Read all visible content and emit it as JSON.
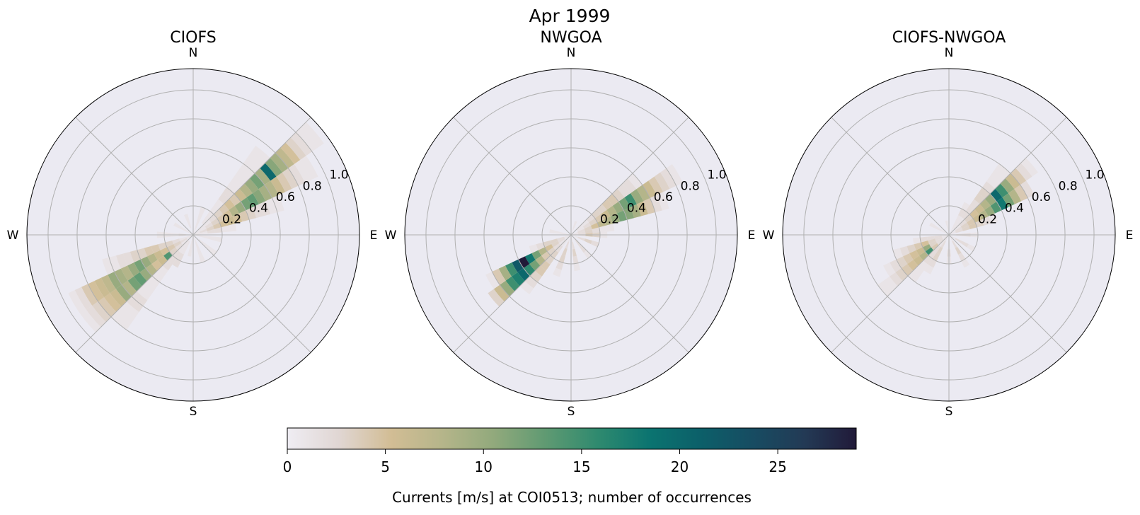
{
  "figure_title": "Apr 1999",
  "chart_data": {
    "type": "polar-histogram",
    "direction_convention": "compass degrees, clockwise from N",
    "direction_bin_width_deg": 10,
    "speed_bin_width": 0.05,
    "radial_ticks": [
      "0.2",
      "0.4",
      "0.6",
      "0.8",
      "1.0"
    ],
    "radial_tick_values": [
      0.2,
      0.4,
      0.6,
      0.8,
      1.0
    ],
    "rmax": 1.146,
    "compass_labels": {
      "N": "N",
      "E": "E",
      "S": "S",
      "W": "W"
    },
    "grid": true,
    "panels": [
      {
        "title": "CIOFS",
        "bins": {
          "40": [
            0,
            0,
            1,
            1,
            1,
            1,
            2,
            2,
            1,
            1,
            1,
            1,
            1,
            1,
            1
          ],
          "50": [
            0,
            1,
            1,
            2,
            3,
            4,
            5,
            4,
            6,
            8,
            10,
            12,
            9,
            20,
            11,
            9,
            7,
            5,
            3,
            2,
            1,
            1
          ],
          "60": [
            1,
            1,
            2,
            3,
            4,
            5,
            8,
            10,
            12,
            13,
            11,
            9,
            8,
            6,
            4,
            3,
            2,
            1,
            1
          ],
          "70": [
            1,
            2,
            3,
            4,
            5,
            6,
            5,
            4,
            3,
            2,
            2,
            1,
            1
          ],
          "80": [
            1,
            1,
            2,
            2,
            1,
            1
          ],
          "100": [
            1,
            1,
            1,
            1
          ],
          "130": [
            0,
            1,
            1,
            1
          ],
          "160": [
            1,
            1,
            1,
            1
          ],
          "190": [
            1,
            1,
            1
          ],
          "210": [
            0,
            1,
            1,
            2,
            2
          ],
          "220": [
            0,
            1,
            1,
            2,
            2,
            2,
            1,
            1,
            1,
            1,
            1,
            2,
            2,
            1,
            1,
            1
          ],
          "230": [
            0,
            1,
            2,
            3,
            14,
            6,
            5,
            8,
            10,
            13,
            12,
            8,
            10,
            6,
            5,
            4,
            3,
            2,
            1
          ],
          "240": [
            1,
            2,
            3,
            4,
            5,
            6,
            8,
            10,
            12,
            10,
            8,
            9,
            10,
            7,
            6,
            5,
            4,
            2,
            1
          ],
          "250": [
            1,
            1,
            2,
            3,
            3,
            4,
            4,
            3,
            3,
            2,
            2,
            1,
            1
          ],
          "270": [
            1,
            2,
            1,
            1,
            1
          ],
          "300": [
            1,
            1,
            1
          ],
          "340": [
            0,
            1,
            1
          ],
          "20": [
            1,
            1,
            1,
            1
          ]
        }
      },
      {
        "title": "NWGOA",
        "bins": {
          "50": [
            0,
            1,
            1,
            2,
            3,
            3,
            4,
            4,
            3,
            2,
            2,
            1
          ],
          "60": [
            0,
            1,
            2,
            3,
            4,
            6,
            8,
            10,
            12,
            15,
            10,
            8,
            6,
            4,
            3,
            2,
            1
          ],
          "70": [
            1,
            2,
            3,
            5,
            7,
            8,
            10,
            12,
            11,
            9,
            6,
            4,
            2,
            1
          ],
          "80": [
            1,
            2,
            3,
            2,
            1,
            1
          ],
          "90": [
            1,
            2,
            4,
            3,
            1
          ],
          "110": [
            1,
            2,
            3,
            2
          ],
          "140": [
            1,
            2,
            2,
            1
          ],
          "170": [
            1,
            2,
            3,
            2,
            1
          ],
          "200": [
            1,
            2,
            3,
            3,
            2,
            1
          ],
          "220": [
            1,
            1,
            2,
            3,
            3,
            4,
            4,
            3,
            2,
            1
          ],
          "230": [
            0,
            1,
            2,
            3,
            4,
            8,
            12,
            16,
            20,
            17,
            15,
            10,
            6,
            3
          ],
          "240": [
            1,
            2,
            3,
            5,
            8,
            12,
            18,
            29,
            22,
            15,
            9,
            4,
            1
          ],
          "250": [
            1,
            2,
            3,
            3,
            2,
            1
          ],
          "280": [
            1,
            1,
            1
          ],
          "20": [
            1,
            1
          ]
        }
      },
      {
        "title": "CIOFS-NWGOA",
        "bins": {
          "30": [
            1,
            1,
            1,
            2,
            1
          ],
          "40": [
            0,
            1,
            1,
            2,
            2,
            2,
            3,
            3,
            2,
            1,
            1,
            1
          ],
          "50": [
            0,
            1,
            2,
            3,
            5,
            6,
            8,
            10,
            20,
            15,
            10,
            6,
            4,
            2,
            1
          ],
          "60": [
            1,
            2,
            3,
            4,
            6,
            8,
            10,
            14,
            18,
            12,
            8,
            4,
            2
          ],
          "70": [
            1,
            2,
            3,
            4,
            3,
            2,
            1
          ],
          "90": [
            1,
            2,
            2,
            1
          ],
          "120": [
            1,
            2,
            2,
            1
          ],
          "150": [
            1,
            2,
            3,
            2,
            1
          ],
          "180": [
            1,
            1,
            2,
            1
          ],
          "210": [
            1,
            2,
            3,
            3,
            2,
            1
          ],
          "220": [
            1,
            1,
            2,
            2,
            2,
            1,
            1,
            1
          ],
          "230": [
            1,
            2,
            4,
            15,
            8,
            6,
            5,
            4,
            3,
            2,
            1,
            1
          ],
          "240": [
            1,
            2,
            3,
            10,
            6,
            5,
            4,
            3,
            2,
            1
          ],
          "250": [
            1,
            2,
            3,
            5,
            4,
            3,
            2,
            1
          ],
          "260": [
            1,
            2,
            2,
            2,
            1
          ],
          "300": [
            1,
            1,
            1
          ],
          "350": [
            1,
            1
          ]
        }
      }
    ],
    "colorbar": {
      "label": "Currents [m/s] at COI0513; number of occurrences",
      "range": [
        0,
        29
      ],
      "ticks": [
        "0",
        "5",
        "10",
        "15",
        "20",
        "25"
      ],
      "tick_values": [
        0,
        5,
        10,
        15,
        20,
        25
      ],
      "colormap_stops": [
        "#efedf3",
        "#e0d6d3",
        "#d2bd95",
        "#b5b58a",
        "#91a97c",
        "#5f9a72",
        "#2f8a6f",
        "#0b7470",
        "#0c5f69",
        "#174c62",
        "#233a55",
        "#211a39"
      ]
    },
    "colors": {
      "axes_background": "#ebeaf2",
      "grid": "#b0b0b0"
    }
  }
}
